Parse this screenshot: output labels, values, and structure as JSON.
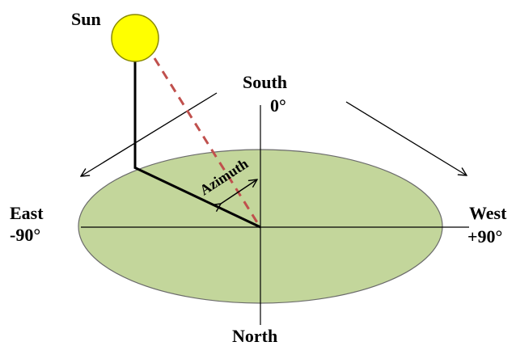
{
  "labels": {
    "sun": "Sun",
    "south": "South",
    "south_deg": "0°",
    "east": "East",
    "east_deg": "-90°",
    "west": "West",
    "west_deg": "+90°",
    "north": "North",
    "azimuth": "Azimuth"
  },
  "colors": {
    "sun_fill": "#ffff00",
    "sun_stroke": "#8a8a00",
    "ground_fill": "#c3d69b",
    "ground_stroke": "#6b6b6b",
    "dashed_ray": "#c0504d",
    "line": "#000000"
  }
}
